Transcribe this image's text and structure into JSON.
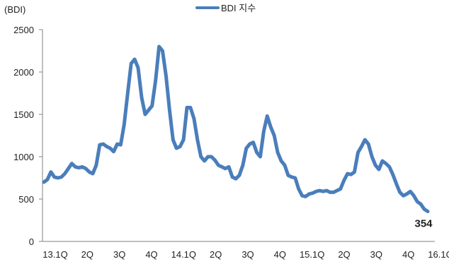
{
  "chart_data": {
    "type": "line",
    "unit_label": "(BDI)",
    "title": "",
    "xlabel": "",
    "ylabel": "",
    "ylim": [
      0,
      2500
    ],
    "yticks": [
      0,
      500,
      1000,
      1500,
      2000,
      2500
    ],
    "xticks": [
      "13.1Q",
      "2Q",
      "3Q",
      "4Q",
      "14.1Q",
      "2Q",
      "3Q",
      "4Q",
      "15.1Q",
      "2Q",
      "3Q",
      "4Q",
      "16.1Q"
    ],
    "legend": {
      "label": "BDI 지수",
      "position": "top-center"
    },
    "grid": false,
    "series": [
      {
        "name": "BDI 지수",
        "color": "#4a7ebb",
        "values": [
          700,
          730,
          820,
          760,
          750,
          760,
          800,
          860,
          920,
          880,
          870,
          880,
          860,
          820,
          800,
          900,
          1140,
          1150,
          1120,
          1100,
          1060,
          1150,
          1140,
          1380,
          1750,
          2100,
          2150,
          2050,
          1700,
          1500,
          1550,
          1600,
          1900,
          2300,
          2250,
          1950,
          1550,
          1200,
          1100,
          1120,
          1200,
          1580,
          1580,
          1450,
          1200,
          1000,
          950,
          1000,
          1000,
          960,
          900,
          880,
          860,
          880,
          760,
          740,
          780,
          900,
          1100,
          1150,
          1170,
          1050,
          1000,
          1300,
          1480,
          1350,
          1250,
          1050,
          950,
          900,
          780,
          760,
          750,
          620,
          540,
          530,
          560,
          570,
          590,
          600,
          590,
          600,
          580,
          580,
          600,
          620,
          720,
          800,
          790,
          820,
          1050,
          1120,
          1200,
          1150,
          1000,
          900,
          850,
          950,
          920,
          880,
          790,
          680,
          580,
          540,
          560,
          590,
          540,
          470,
          440,
          380,
          354
        ]
      }
    ],
    "annotations": [
      {
        "text": "354",
        "target": "last-point"
      }
    ]
  }
}
